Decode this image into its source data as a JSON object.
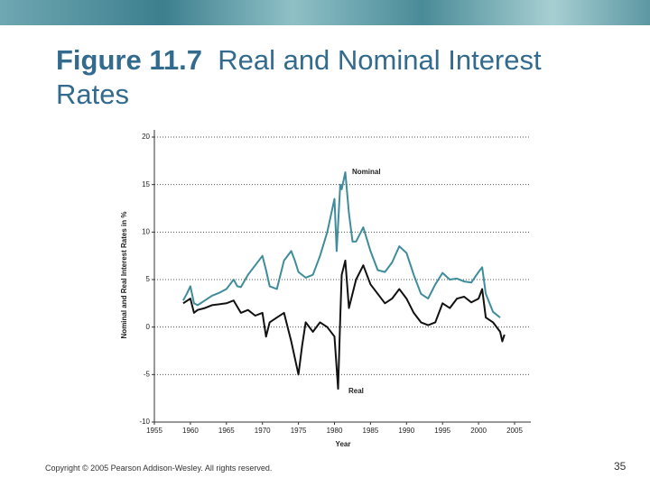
{
  "slide": {
    "title_bold": "Figure 11.7",
    "title_rest": "Real and Nominal Interest Rates",
    "footer": "Copyright © 2005 Pearson Addison-Wesley. All rights reserved.",
    "page_number": "35"
  },
  "chart_data": {
    "type": "line",
    "x_label": "Year",
    "y_label": "Nominal and Real Interest Rates in %",
    "xlim": [
      1955,
      2005
    ],
    "xticks": [
      1955,
      1960,
      1965,
      1970,
      1975,
      1980,
      1985,
      1990,
      1995,
      2000,
      2005
    ],
    "ylim": [
      -10,
      20
    ],
    "yticks": [
      -10,
      -5,
      0,
      5,
      10,
      15,
      20
    ],
    "grid": true,
    "annotations": [
      "Nominal",
      "Real"
    ],
    "series": [
      {
        "name": "Nominal",
        "color": "#3f8d9b",
        "x": [
          1959,
          1959.5,
          1960,
          1960.5,
          1961,
          1962,
          1963,
          1964,
          1965,
          1966,
          1966.5,
          1967,
          1968,
          1969,
          1970,
          1970.5,
          1971,
          1972,
          1973,
          1974,
          1974.5,
          1975,
          1976,
          1977,
          1978,
          1979,
          1980,
          1980.3,
          1980.8,
          1981,
          1981.5,
          1982,
          1982.5,
          1983,
          1984,
          1985,
          1986,
          1987,
          1988,
          1989,
          1990,
          1991,
          1992,
          1993,
          1994,
          1995,
          1996,
          1997,
          1998,
          1999,
          2000,
          2000.5,
          2001,
          2002,
          2003
        ],
        "values": [
          2.8,
          3.5,
          4.3,
          2.5,
          2.3,
          2.8,
          3.3,
          3.6,
          4.0,
          5.0,
          4.3,
          4.2,
          5.5,
          6.5,
          7.5,
          6.0,
          4.3,
          4.0,
          7.0,
          8.0,
          7.0,
          5.8,
          5.2,
          5.5,
          7.5,
          10,
          13.5,
          8,
          15,
          14.5,
          16.3,
          12,
          9,
          9,
          10.5,
          8,
          6,
          5.8,
          6.8,
          8.5,
          7.8,
          5.5,
          3.5,
          3.0,
          4.5,
          5.7,
          5.0,
          5.1,
          4.8,
          4.7,
          5.8,
          6.3,
          3.5,
          1.6,
          1.0
        ]
      },
      {
        "name": "Real",
        "color": "#111111",
        "x": [
          1959,
          1960,
          1960.5,
          1961,
          1962,
          1963,
          1964,
          1965,
          1966,
          1967,
          1968,
          1969,
          1970,
          1970.5,
          1971,
          1972,
          1973,
          1974,
          1975,
          1975.5,
          1976,
          1977,
          1978,
          1979,
          1980,
          1980.5,
          1980.8,
          1981,
          1981.5,
          1982,
          1983,
          1984,
          1985,
          1986,
          1987,
          1988,
          1989,
          1990,
          1991,
          1992,
          1993,
          1994,
          1995,
          1996,
          1997,
          1998,
          1999,
          2000,
          2000.5,
          2001,
          2002,
          2003,
          2003.3,
          2003.6
        ],
        "values": [
          2.5,
          3.0,
          1.5,
          1.8,
          2.0,
          2.3,
          2.4,
          2.5,
          2.8,
          1.5,
          1.8,
          1.2,
          1.5,
          -1.0,
          0.5,
          1.0,
          1.5,
          -1.5,
          -5.0,
          -2.0,
          0.5,
          -0.5,
          0.5,
          0,
          -1,
          -6.5,
          1,
          5.5,
          7,
          2,
          5,
          6.5,
          4.5,
          3.5,
          2.5,
          3.0,
          4.0,
          3,
          1.5,
          0.5,
          0.2,
          0.5,
          2.5,
          2.0,
          3.0,
          3.2,
          2.6,
          3.0,
          4.0,
          1.0,
          0.5,
          -0.5,
          -1.5,
          -0.8
        ]
      }
    ]
  }
}
